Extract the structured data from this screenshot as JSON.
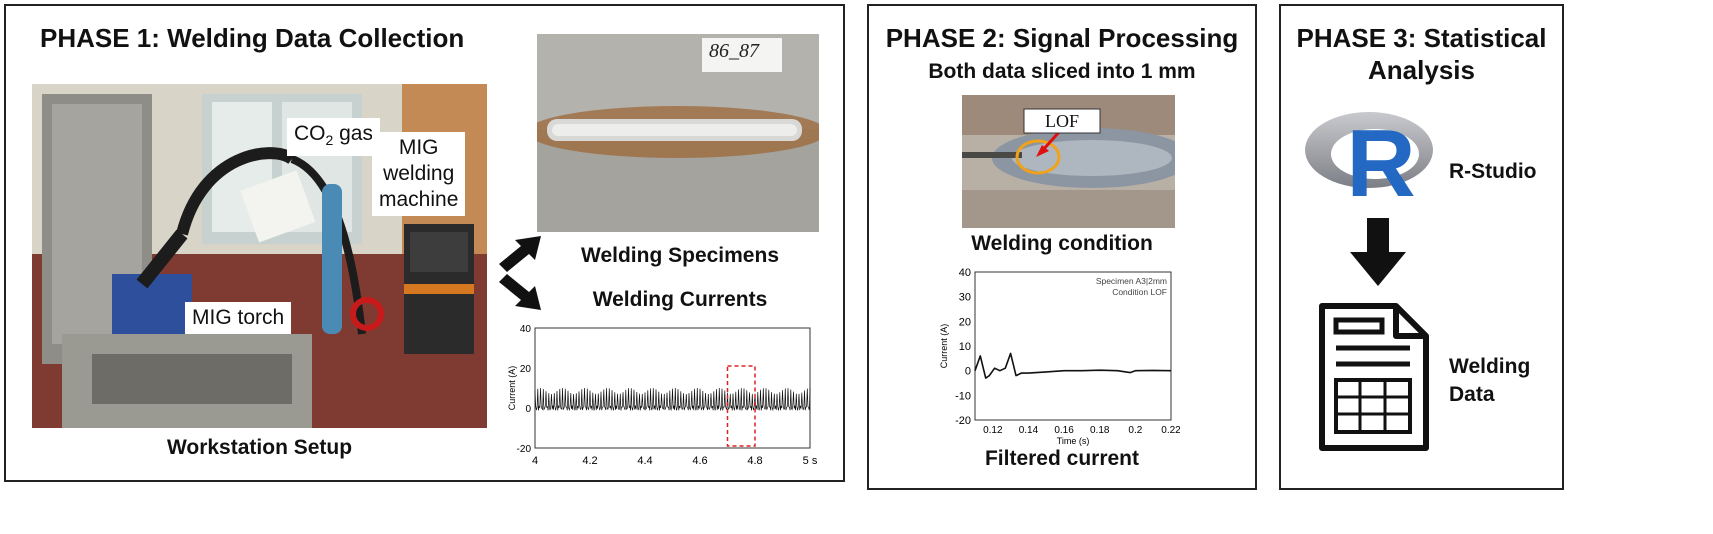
{
  "phase1": {
    "title": "PHASE 1: Welding Data Collection",
    "callouts": {
      "gas": "CO",
      "gas_sub": "2",
      "gas_suffix": " gas",
      "machine": "MIG\nwelding\nmachine",
      "torch": "MIG torch"
    },
    "workstation_label": "Workstation Setup",
    "specimen_tag": "86_87",
    "specimens_label": "Welding Specimens",
    "currents_label": "Welding Currents",
    "chart": {
      "ylabel": "Current (A)",
      "yticks": [
        "40",
        "20",
        "0",
        "-20"
      ],
      "xticks": [
        "4",
        "4.2",
        "4.4",
        "4.6",
        "4.8",
        "5 s"
      ]
    }
  },
  "phase2": {
    "title": "PHASE 2: Signal Processing",
    "subtitle": "Both data sliced into 1 mm",
    "lof_tag": "LOF",
    "condition_label": "Welding condition",
    "chart": {
      "legend_line1": "Specimen A3|2mm",
      "legend_line2": "Condition LOF",
      "ylabel": "Current (A)",
      "xlabel": "Time (s)",
      "yticks": [
        "40",
        "30",
        "20",
        "10",
        "0",
        "-10",
        "-20"
      ],
      "xticks": [
        "0.12",
        "0.14",
        "0.16",
        "0.18",
        "0.2",
        "0.22"
      ]
    },
    "filtered_label": "Filtered current"
  },
  "phase3": {
    "title_line1": "PHASE 3: Statistical",
    "title_line2": "Analysis",
    "r_logo_letter": "R",
    "rstudio_label": "R-Studio",
    "data_label_line1": "Welding",
    "data_label_line2": "Data",
    "icons": [
      "r-logo-icon",
      "down-arrow-icon",
      "document-table-icon"
    ]
  },
  "chart_data": [
    {
      "type": "line",
      "xlim": [
        4,
        5
      ],
      "ylim": [
        -20,
        40
      ],
      "ylabel": "Current (A)",
      "note": "",
      "highlight_x": [
        4.7,
        4.8
      ],
      "series": [
        {
          "pattern": "spiky",
          "baseline": 0,
          "spike_peak": 10,
          "spike_period": 0.01
        }
      ]
    },
    {
      "type": "line",
      "xlim": [
        0.11,
        0.22
      ],
      "ylim": [
        -20,
        40
      ],
      "xlabel": "Time (s)",
      "ylabel": "Current (A)",
      "series": [
        {
          "name": "Specimen A3|2mm Condition LOF",
          "x": [
            0.11,
            0.113,
            0.116,
            0.118,
            0.121,
            0.124,
            0.127,
            0.13,
            0.133,
            0.136,
            0.14,
            0.15,
            0.16,
            0.17,
            0.18,
            0.19,
            0.197,
            0.2,
            0.21,
            0.22
          ],
          "y": [
            0,
            6,
            -3,
            -2,
            1,
            0,
            1,
            7,
            -2,
            -1,
            -1,
            -0.5,
            0,
            0,
            0.2,
            0,
            -0.8,
            0,
            0.1,
            0
          ]
        }
      ]
    }
  ]
}
